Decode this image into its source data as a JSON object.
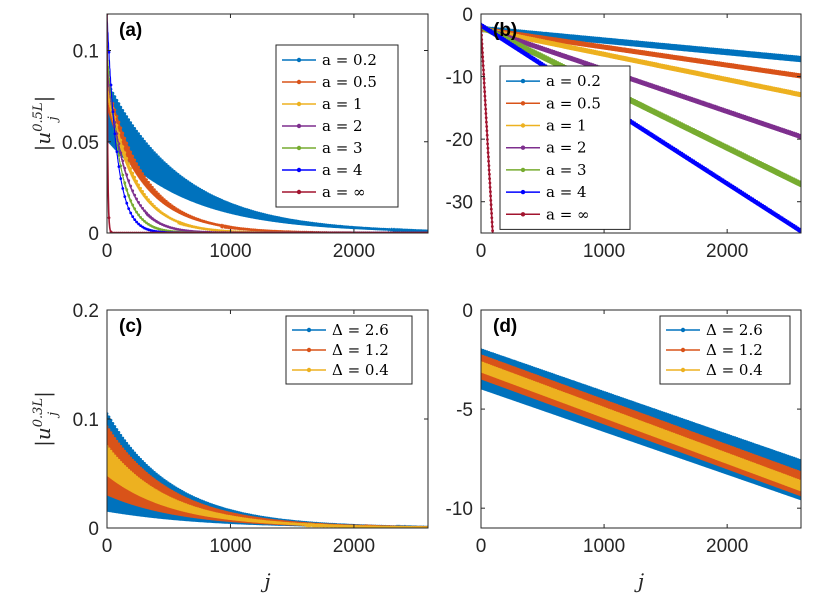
{
  "chart_data": [
    {
      "type": "line",
      "panel": "(a)",
      "ylabel": "|u_j^{0.5L}|",
      "xlabel": "",
      "xlim": [
        0,
        2600
      ],
      "ylim": [
        0,
        0.12
      ],
      "xticks": [
        {
          "v": 0,
          "label": "0"
        },
        {
          "v": 1000,
          "label": "1000"
        },
        {
          "v": 2000,
          "label": "2000"
        }
      ],
      "yticks": [
        {
          "v": 0,
          "label": "0"
        },
        {
          "v": 0.05,
          "label": "0.05"
        },
        {
          "v": 0.1,
          "label": "0.1"
        }
      ],
      "legend_position": "top-right",
      "series": [
        {
          "name": "a = 0.2",
          "color": "#0072BD",
          "kind": "decay",
          "start": 0.065,
          "decay": 620,
          "osc": 0.018
        },
        {
          "name": "a = 0.5",
          "color": "#D95319",
          "kind": "decay",
          "start": 0.075,
          "decay": 310,
          "osc": 0.008
        },
        {
          "name": "a = 1",
          "color": "#EDB120",
          "kind": "decay",
          "start": 0.08,
          "decay": 220,
          "osc": 0.005
        },
        {
          "name": "a = 2",
          "color": "#7E2F8E",
          "kind": "decay",
          "start": 0.09,
          "decay": 150,
          "osc": 0.003
        },
        {
          "name": "a = 3",
          "color": "#77AC30",
          "kind": "decay",
          "start": 0.1,
          "decay": 110,
          "osc": 0.002
        },
        {
          "name": "a = 4",
          "color": "#0000FF",
          "kind": "decay",
          "start": 0.12,
          "decay": 80,
          "osc": 0.001
        },
        {
          "name": "a = ∞",
          "color": "#A2142F",
          "kind": "spike",
          "start": 0.12,
          "decay": 6,
          "osc": 0
        }
      ]
    },
    {
      "type": "line",
      "panel": "(b)",
      "ylabel": "",
      "xlabel": "",
      "xlim": [
        0,
        2600
      ],
      "ylim": [
        -35,
        0
      ],
      "xticks": [
        {
          "v": 0,
          "label": "0"
        },
        {
          "v": 1000,
          "label": "1000"
        },
        {
          "v": 2000,
          "label": "2000"
        }
      ],
      "yticks": [
        {
          "v": 0,
          "label": "0"
        },
        {
          "v": -10,
          "label": "-10"
        },
        {
          "v": -20,
          "label": "-20"
        },
        {
          "v": -30,
          "label": "-30"
        }
      ],
      "legend_position": "center-left",
      "series": [
        {
          "name": "a = 0.2",
          "color": "#0072BD",
          "kind": "log",
          "start": -2.5,
          "end": -7.3,
          "osc": 0.4
        },
        {
          "name": "a = 0.5",
          "color": "#D95319",
          "kind": "log",
          "start": -2.5,
          "end": -10,
          "osc": 0.3
        },
        {
          "name": "a = 1",
          "color": "#EDB120",
          "kind": "log",
          "start": -2.5,
          "end": -13,
          "osc": 0.3
        },
        {
          "name": "a = 2",
          "color": "#7E2F8E",
          "kind": "log",
          "start": -2.3,
          "end": -19.7,
          "osc": 0.3
        },
        {
          "name": "a = 3",
          "color": "#77AC30",
          "kind": "log",
          "start": -2.1,
          "end": -27.3,
          "osc": 0.4
        },
        {
          "name": "a = 4",
          "color": "#0000FF",
          "kind": "log",
          "start": -1.9,
          "end": -34.8,
          "osc": 0.3
        },
        {
          "name": "a = ∞",
          "color": "#A2142F",
          "kind": "steep",
          "start": -2,
          "end": -35,
          "xend": 95,
          "osc": 0
        }
      ]
    },
    {
      "type": "line",
      "panel": "(c)",
      "ylabel": "|u_j^{0.3L}|",
      "xlabel": "j",
      "xlim": [
        0,
        2600
      ],
      "ylim": [
        0,
        0.2
      ],
      "xticks": [
        {
          "v": 0,
          "label": "0"
        },
        {
          "v": 1000,
          "label": "1000"
        },
        {
          "v": 2000,
          "label": "2000"
        }
      ],
      "yticks": [
        {
          "v": 0,
          "label": "0"
        },
        {
          "v": 0.1,
          "label": "0.1"
        },
        {
          "v": 0.2,
          "label": "0.2"
        }
      ],
      "legend_position": "top-right",
      "series": [
        {
          "name": "Δ = 2.6",
          "color": "#0072BD",
          "kind": "decay",
          "start": 0.055,
          "decay": 560,
          "osc": 0.05
        },
        {
          "name": "Δ = 1.2",
          "color": "#D95319",
          "kind": "decay",
          "start": 0.058,
          "decay": 540,
          "osc": 0.035
        },
        {
          "name": "Δ = 0.4",
          "color": "#EDB120",
          "kind": "decay",
          "start": 0.06,
          "decay": 520,
          "osc": 0.015
        }
      ]
    },
    {
      "type": "line",
      "panel": "(d)",
      "ylabel": "",
      "xlabel": "j",
      "xlim": [
        0,
        2600
      ],
      "ylim": [
        -11,
        0
      ],
      "xticks": [
        {
          "v": 0,
          "label": "0"
        },
        {
          "v": 1000,
          "label": "1000"
        },
        {
          "v": 2000,
          "label": "2000"
        }
      ],
      "yticks": [
        {
          "v": 0,
          "label": "0"
        },
        {
          "v": -5,
          "label": "-5"
        },
        {
          "v": -10,
          "label": "-10"
        }
      ],
      "legend_position": "top-right",
      "series": [
        {
          "name": "Δ = 2.6",
          "color": "#0072BD",
          "kind": "log",
          "start": -3.0,
          "end": -8.6,
          "osc": 1.0
        },
        {
          "name": "Δ = 1.2",
          "color": "#D95319",
          "kind": "log",
          "start": -2.9,
          "end": -8.8,
          "osc": 0.6
        },
        {
          "name": "Δ = 0.4",
          "color": "#EDB120",
          "kind": "log",
          "start": -2.9,
          "end": -8.9,
          "osc": 0.25
        }
      ]
    }
  ]
}
